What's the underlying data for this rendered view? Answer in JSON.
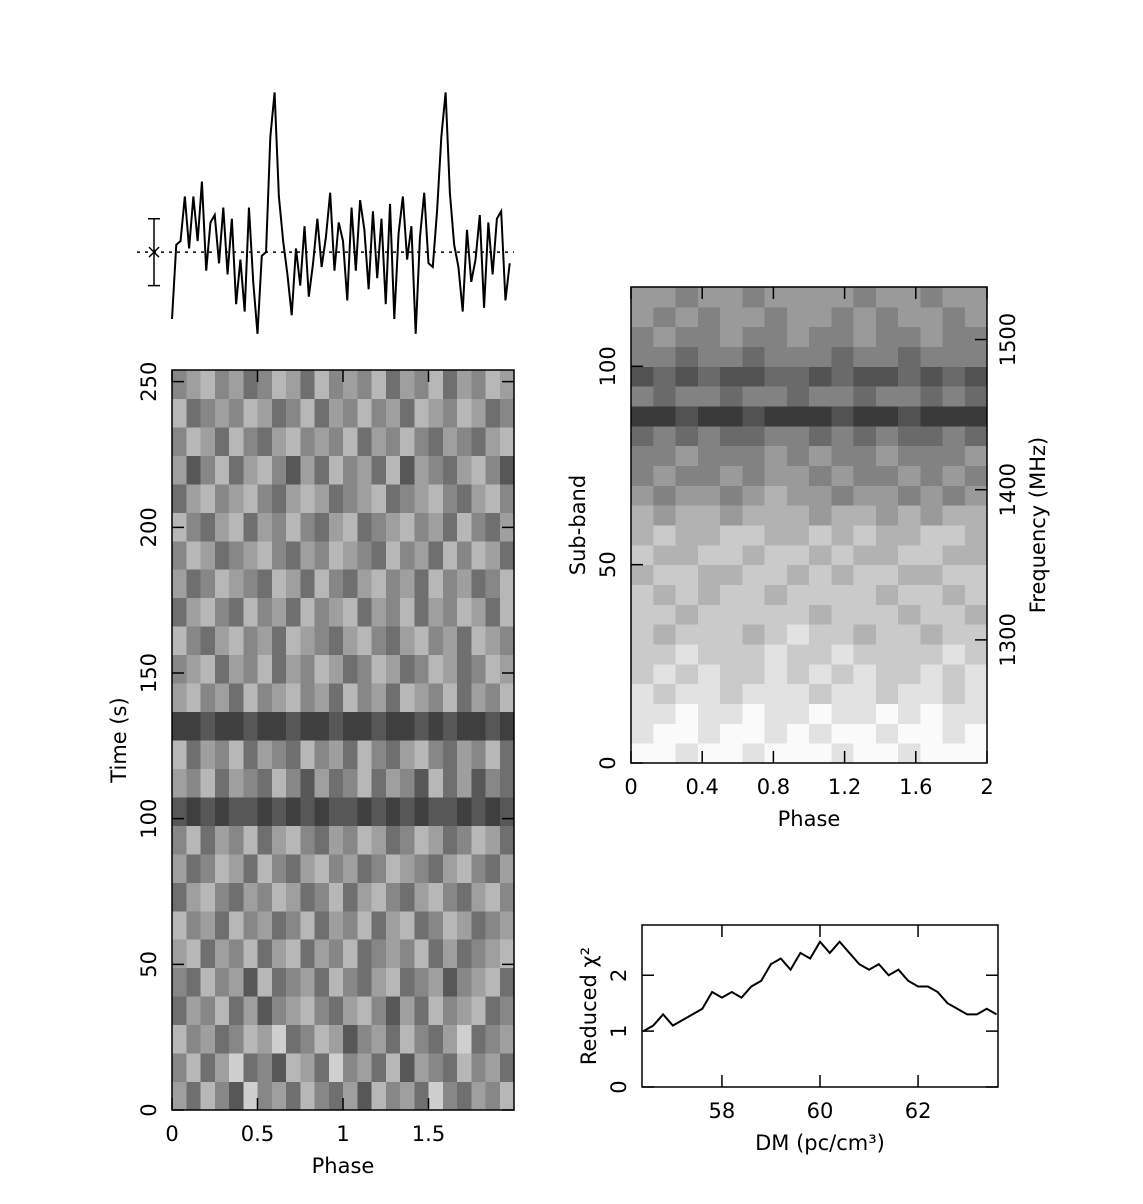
{
  "chart_data": [
    {
      "type": "line",
      "color": "#000",
      "xlim": [
        0,
        2
      ],
      "ylim": [
        -2.5,
        4.5
      ],
      "mean": 0,
      "error": 0.9,
      "x": [
        0,
        0.025,
        0.05,
        0.075,
        0.1,
        0.125,
        0.15,
        0.175,
        0.2,
        0.225,
        0.25,
        0.275,
        0.3,
        0.325,
        0.35,
        0.375,
        0.4,
        0.425,
        0.45,
        0.475,
        0.5,
        0.525,
        0.55,
        0.575,
        0.6,
        0.625,
        0.65,
        0.675,
        0.7,
        0.725,
        0.75,
        0.775,
        0.8,
        0.825,
        0.85,
        0.875,
        0.9,
        0.925,
        0.95,
        0.975,
        1,
        1.025,
        1.05,
        1.075,
        1.1,
        1.125,
        1.15,
        1.175,
        1.2,
        1.225,
        1.25,
        1.275,
        1.3,
        1.325,
        1.35,
        1.375,
        1.4,
        1.425,
        1.45,
        1.475,
        1.5,
        1.525,
        1.55,
        1.575,
        1.6,
        1.625,
        1.65,
        1.675,
        1.7,
        1.725,
        1.75,
        1.775,
        1.8,
        1.825,
        1.85,
        1.875,
        1.9,
        1.925,
        1.95,
        1.975
      ],
      "values": [
        -1.8,
        0.2,
        0.3,
        1.5,
        0.1,
        1.5,
        0.3,
        1.9,
        -0.5,
        0.8,
        1.0,
        -0.3,
        1.2,
        -0.6,
        0.9,
        -1.4,
        -0.2,
        -1.6,
        1.2,
        -0.8,
        -2.2,
        -0.1,
        0,
        3.1,
        4.3,
        1.5,
        0.3,
        -0.6,
        -1.7,
        0.1,
        -0.9,
        0.7,
        -1.2,
        -0.3,
        0.9,
        -0.4,
        0.4,
        1.6,
        -0.5,
        0.8,
        0.3,
        -1.3,
        1.2,
        -0.5,
        1.4,
        0.6,
        -1.0,
        1.1,
        -0.7,
        0.9,
        -1.4,
        1.3,
        -1.8,
        0.5,
        1.5,
        -0.2,
        0.7,
        -2.2,
        0.4,
        1.6,
        -0.3,
        -0.4,
        1.1,
        3.1,
        4.3,
        1.6,
        0.2,
        -0.4,
        -1.6,
        0.6,
        -0.8,
        -0.2,
        1.0,
        -1.5,
        0.8,
        -0.6,
        0.9,
        1.1,
        -1.3,
        -0.3
      ]
    },
    {
      "type": "heatmap",
      "x_label": "Phase",
      "y_label": "Time (s)",
      "xlim": [
        0,
        2
      ],
      "ylim": [
        0,
        254
      ],
      "xticks": [
        0,
        0.5,
        1,
        1.5
      ],
      "yticks": [
        0,
        50,
        100,
        150,
        200,
        250
      ],
      "z": [
        [
          4,
          6,
          3,
          5,
          7,
          2,
          5,
          4,
          6,
          3,
          5,
          6,
          4,
          7,
          3,
          5,
          4,
          6,
          2,
          5,
          6,
          4,
          5,
          3
        ],
        [
          5,
          3,
          6,
          4,
          2,
          6,
          5,
          7,
          3,
          4,
          6,
          2,
          5,
          4,
          6,
          3,
          7,
          4,
          5,
          6,
          3,
          5,
          4,
          6
        ],
        [
          3,
          5,
          4,
          6,
          5,
          3,
          4,
          2,
          6,
          5,
          3,
          4,
          7,
          5,
          4,
          6,
          3,
          5,
          6,
          4,
          2,
          6,
          5,
          4
        ],
        [
          6,
          4,
          5,
          3,
          6,
          4,
          7,
          5,
          4,
          3,
          5,
          6,
          4,
          3,
          5,
          7,
          4,
          6,
          3,
          5,
          4,
          3,
          6,
          5
        ],
        [
          5,
          6,
          3,
          5,
          4,
          7,
          3,
          6,
          5,
          4,
          6,
          3,
          5,
          6,
          4,
          3,
          6,
          5,
          4,
          7,
          5,
          4,
          3,
          6
        ],
        [
          4,
          3,
          6,
          4,
          5,
          3,
          6,
          4,
          3,
          6,
          4,
          5,
          3,
          6,
          5,
          4,
          5,
          3,
          6,
          4,
          6,
          5,
          4,
          3
        ],
        [
          3,
          5,
          4,
          6,
          3,
          5,
          4,
          6,
          5,
          3,
          6,
          4,
          5,
          3,
          6,
          4,
          3,
          6,
          5,
          3,
          4,
          6,
          5,
          4
        ],
        [
          6,
          4,
          3,
          5,
          6,
          4,
          5,
          3,
          4,
          6,
          5,
          3,
          6,
          4,
          3,
          5,
          6,
          4,
          3,
          5,
          6,
          4,
          3,
          5
        ],
        [
          4,
          6,
          5,
          3,
          4,
          6,
          3,
          5,
          6,
          4,
          3,
          5,
          4,
          6,
          5,
          3,
          4,
          5,
          6,
          4,
          3,
          5,
          6,
          4
        ],
        [
          5,
          3,
          6,
          4,
          5,
          3,
          6,
          4,
          3,
          5,
          6,
          4,
          5,
          3,
          4,
          6,
          5,
          3,
          4,
          6,
          5,
          3,
          4,
          6
        ],
        [
          7,
          8,
          7,
          8,
          7,
          7,
          8,
          7,
          8,
          7,
          8,
          7,
          7,
          8,
          7,
          8,
          7,
          8,
          7,
          7,
          8,
          7,
          8,
          7
        ],
        [
          4,
          5,
          3,
          6,
          4,
          5,
          6,
          3,
          5,
          7,
          4,
          6,
          5,
          3,
          6,
          4,
          5,
          7,
          3,
          6,
          4,
          7,
          5,
          6
        ],
        [
          3,
          6,
          4,
          5,
          3,
          6,
          4,
          5,
          6,
          3,
          5,
          4,
          6,
          3,
          5,
          6,
          4,
          3,
          5,
          6,
          4,
          5,
          3,
          6
        ],
        [
          8,
          8,
          7,
          8,
          8,
          7,
          8,
          8,
          7,
          8,
          8,
          7,
          8,
          8,
          7,
          8,
          8,
          7,
          8,
          7,
          8,
          8,
          7,
          8
        ],
        [
          4,
          3,
          5,
          4,
          6,
          3,
          5,
          4,
          3,
          5,
          4,
          6,
          3,
          5,
          4,
          6,
          3,
          4,
          5,
          3,
          6,
          4,
          5,
          3
        ],
        [
          5,
          4,
          3,
          6,
          4,
          5,
          3,
          6,
          4,
          5,
          3,
          4,
          6,
          5,
          3,
          4,
          6,
          5,
          3,
          4,
          6,
          5,
          3,
          4
        ],
        [
          3,
          5,
          6,
          4,
          3,
          5,
          4,
          6,
          3,
          4,
          5,
          6,
          4,
          3,
          5,
          6,
          4,
          3,
          5,
          4,
          6,
          3,
          4,
          5
        ],
        [
          6,
          4,
          3,
          5,
          6,
          3,
          5,
          4,
          6,
          3,
          5,
          4,
          3,
          6,
          4,
          5,
          3,
          6,
          4,
          5,
          3,
          4,
          6,
          3
        ],
        [
          4,
          6,
          5,
          3,
          4,
          5,
          6,
          3,
          4,
          6,
          3,
          5,
          6,
          4,
          3,
          5,
          4,
          6,
          3,
          5,
          4,
          6,
          5,
          3
        ],
        [
          5,
          3,
          4,
          6,
          5,
          4,
          3,
          5,
          6,
          4,
          5,
          3,
          4,
          5,
          6,
          3,
          5,
          4,
          6,
          3,
          5,
          3,
          4,
          6
        ],
        [
          3,
          5,
          6,
          4,
          3,
          6,
          4,
          5,
          3,
          5,
          6,
          4,
          3,
          6,
          5,
          4,
          3,
          5,
          4,
          6,
          3,
          5,
          6,
          4
        ],
        [
          6,
          4,
          3,
          5,
          4,
          3,
          5,
          6,
          4,
          3,
          4,
          6,
          5,
          4,
          3,
          6,
          5,
          4,
          3,
          5,
          6,
          4,
          3,
          5
        ],
        [
          4,
          7,
          5,
          3,
          6,
          4,
          3,
          5,
          7,
          4,
          6,
          3,
          5,
          4,
          6,
          3,
          7,
          4,
          5,
          6,
          4,
          3,
          5,
          7
        ],
        [
          5,
          3,
          4,
          6,
          3,
          5,
          6,
          4,
          3,
          5,
          4,
          5,
          3,
          6,
          4,
          5,
          3,
          5,
          6,
          4,
          5,
          6,
          4,
          3
        ],
        [
          3,
          6,
          5,
          4,
          5,
          3,
          4,
          6,
          5,
          3,
          6,
          4,
          5,
          3,
          5,
          4,
          6,
          3,
          4,
          5,
          3,
          4,
          6,
          5
        ],
        [
          5,
          4,
          3,
          5,
          4,
          6,
          5,
          3,
          4,
          6,
          3,
          5,
          4,
          5,
          3,
          6,
          4,
          5,
          3,
          6,
          4,
          5,
          3,
          4
        ]
      ]
    },
    {
      "type": "heatmap",
      "x_label": "Phase",
      "y_label": "Sub-band",
      "y2_label": "Frequency (MHz)",
      "xlim": [
        0,
        2
      ],
      "ylim": [
        0,
        120
      ],
      "xticks": [
        0,
        0.4,
        0.8,
        1.2,
        1.6,
        2
      ],
      "yticks": [
        0,
        50,
        100
      ],
      "y2lim": [
        1218,
        1535
      ],
      "y2ticks": [
        1300,
        1400,
        1500
      ],
      "z": [
        [
          0,
          0,
          1,
          0,
          0,
          1,
          0,
          0,
          0,
          1,
          0,
          0,
          1,
          0,
          0,
          0
        ],
        [
          1,
          0,
          0,
          1,
          0,
          0,
          1,
          0,
          1,
          0,
          0,
          1,
          0,
          0,
          1,
          0
        ],
        [
          1,
          1,
          0,
          1,
          1,
          0,
          1,
          1,
          0,
          1,
          1,
          0,
          1,
          0,
          1,
          1
        ],
        [
          1,
          2,
          1,
          1,
          2,
          1,
          1,
          1,
          2,
          1,
          1,
          2,
          1,
          1,
          2,
          1
        ],
        [
          2,
          1,
          2,
          1,
          2,
          2,
          1,
          2,
          1,
          2,
          1,
          2,
          2,
          1,
          2,
          1
        ],
        [
          2,
          2,
          1,
          2,
          2,
          2,
          1,
          2,
          2,
          1,
          2,
          2,
          2,
          2,
          1,
          2
        ],
        [
          2,
          3,
          2,
          2,
          2,
          3,
          2,
          1,
          2,
          2,
          3,
          2,
          2,
          3,
          2,
          2
        ],
        [
          2,
          2,
          3,
          2,
          2,
          2,
          2,
          2,
          3,
          2,
          2,
          2,
          3,
          2,
          2,
          3
        ],
        [
          2,
          3,
          2,
          3,
          2,
          2,
          3,
          2,
          2,
          2,
          2,
          3,
          2,
          2,
          3,
          2
        ],
        [
          3,
          2,
          2,
          3,
          3,
          2,
          2,
          3,
          2,
          3,
          2,
          2,
          3,
          3,
          2,
          2
        ],
        [
          2,
          3,
          3,
          2,
          2,
          3,
          2,
          2,
          3,
          2,
          3,
          3,
          2,
          2,
          3,
          3
        ],
        [
          3,
          2,
          3,
          3,
          2,
          2,
          3,
          3,
          2,
          3,
          2,
          3,
          3,
          2,
          2,
          3
        ],
        [
          3,
          4,
          3,
          3,
          4,
          3,
          3,
          3,
          4,
          3,
          3,
          4,
          3,
          4,
          3,
          3
        ],
        [
          4,
          5,
          4,
          4,
          5,
          4,
          3,
          4,
          4,
          5,
          4,
          4,
          5,
          4,
          5,
          4
        ],
        [
          5,
          4,
          5,
          5,
          4,
          5,
          4,
          4,
          5,
          4,
          5,
          5,
          4,
          5,
          4,
          5
        ],
        [
          5,
          5,
          4,
          5,
          5,
          5,
          4,
          5,
          4,
          5,
          5,
          4,
          5,
          5,
          5,
          4
        ],
        [
          6,
          5,
          6,
          5,
          6,
          6,
          5,
          5,
          6,
          5,
          6,
          5,
          6,
          6,
          5,
          6
        ],
        [
          8,
          8,
          7,
          8,
          8,
          7,
          8,
          8,
          8,
          7,
          8,
          8,
          7,
          8,
          8,
          8
        ],
        [
          5,
          6,
          5,
          5,
          6,
          5,
          5,
          6,
          5,
          5,
          6,
          5,
          5,
          6,
          5,
          6
        ],
        [
          7,
          6,
          7,
          6,
          7,
          7,
          6,
          6,
          7,
          6,
          7,
          7,
          6,
          7,
          6,
          7
        ],
        [
          5,
          5,
          6,
          5,
          5,
          6,
          5,
          5,
          5,
          6,
          5,
          5,
          6,
          5,
          5,
          5
        ],
        [
          5,
          4,
          5,
          5,
          4,
          5,
          5,
          4,
          5,
          5,
          4,
          5,
          5,
          4,
          5,
          5
        ],
        [
          4,
          5,
          4,
          5,
          4,
          4,
          5,
          4,
          4,
          5,
          4,
          5,
          4,
          4,
          5,
          4
        ],
        [
          4,
          4,
          5,
          4,
          4,
          5,
          4,
          4,
          4,
          4,
          5,
          4,
          4,
          5,
          4,
          4
        ]
      ]
    },
    {
      "type": "line",
      "color": "#000",
      "x_label": "DM (pc/cm³)",
      "y_label": "Reduced χ²",
      "xlim": [
        56.37,
        63.63
      ],
      "ylim": [
        0,
        2.9
      ],
      "xticks": [
        58,
        60,
        62
      ],
      "yticks": [
        0,
        1,
        2
      ],
      "x": [
        56.4,
        56.6,
        56.8,
        57,
        57.2,
        57.4,
        57.6,
        57.8,
        58,
        58.2,
        58.4,
        58.6,
        58.8,
        59,
        59.2,
        59.4,
        59.6,
        59.8,
        60,
        60.2,
        60.4,
        60.6,
        60.8,
        61,
        61.2,
        61.4,
        61.6,
        61.8,
        62,
        62.2,
        62.4,
        62.6,
        62.8,
        63,
        63.2,
        63.4,
        63.6
      ],
      "values": [
        1.0,
        1.1,
        1.3,
        1.1,
        1.2,
        1.3,
        1.4,
        1.7,
        1.6,
        1.7,
        1.6,
        1.8,
        1.9,
        2.2,
        2.3,
        2.1,
        2.4,
        2.3,
        2.6,
        2.4,
        2.6,
        2.4,
        2.2,
        2.1,
        2.2,
        2.0,
        2.1,
        1.9,
        1.8,
        1.8,
        1.7,
        1.5,
        1.4,
        1.3,
        1.3,
        1.4,
        1.3
      ]
    }
  ]
}
